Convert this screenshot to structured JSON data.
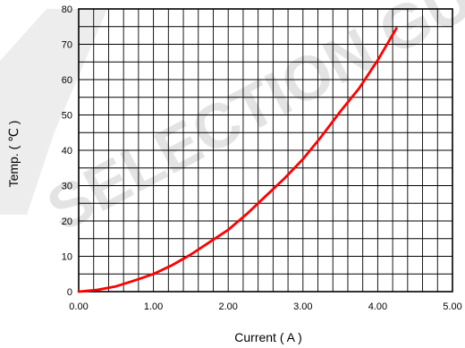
{
  "chart_data": {
    "type": "line",
    "xlabel": "Current ( A )",
    "ylabel": "Temp. ( ℃ )",
    "xlim": [
      0,
      5
    ],
    "ylim": [
      0,
      80
    ],
    "x_ticks": [
      "0.00",
      "1.00",
      "2.00",
      "3.00",
      "4.00",
      "5.00"
    ],
    "y_ticks": [
      "0",
      "10",
      "20",
      "30",
      "40",
      "50",
      "60",
      "70",
      "80"
    ],
    "grid": true,
    "line_color": "#ff0000",
    "series": [
      {
        "x": [
          0.0,
          0.25,
          0.5,
          0.75,
          1.0,
          1.25,
          1.5,
          1.75,
          2.0,
          2.25,
          2.5,
          2.75,
          3.0,
          3.25,
          3.5,
          3.75,
          4.0,
          4.25
        ],
        "values": [
          0,
          0.5,
          1.5,
          3.2,
          5.0,
          7.5,
          10.5,
          14,
          17.5,
          22,
          27,
          32,
          37.5,
          44,
          51,
          57.5,
          65.5,
          74.5
        ]
      }
    ]
  },
  "watermark": {
    "text": "SELECTION GUIDE"
  }
}
